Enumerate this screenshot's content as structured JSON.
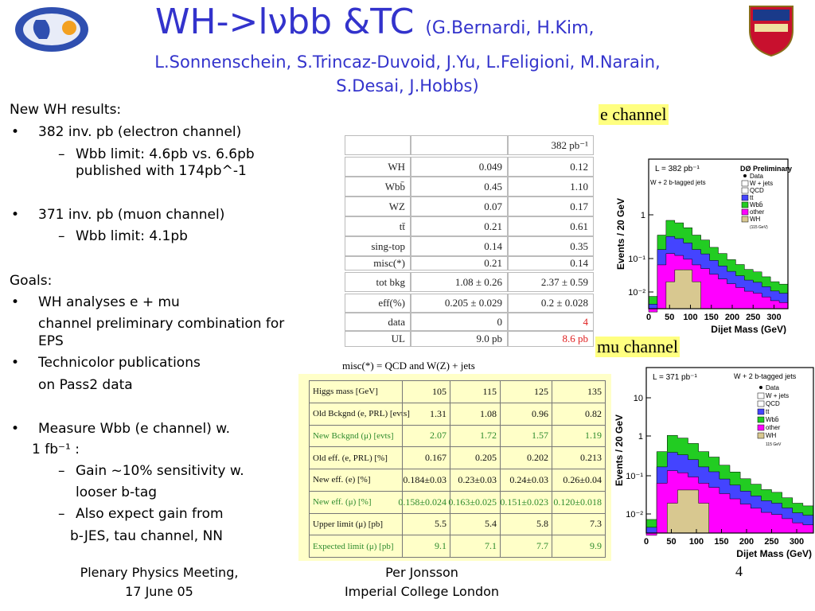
{
  "header": {
    "title": "WH->lνbb &TC",
    "authors": [
      "(G.Bernardi, H.Kim,",
      "L.Sonnenschein, S.Trincaz-Duvoid, J.Yu, L.Feligioni, M.Narain,",
      "S.Desai, J.Hobbs)"
    ]
  },
  "body": {
    "lines": [
      {
        "text": "New WH results:"
      },
      {
        "marker": "•",
        "text": "382 inv. pb (electron channel)"
      },
      {
        "marker": "–",
        "text": "Wbb limit: 4.6pb vs. 6.6pb"
      },
      {
        "text": "published with 174pb^-1"
      },
      {
        "marker": "•",
        "text": "371 inv. pb (muon channel)"
      },
      {
        "marker": "–",
        "text": "Wbb limit: 4.1pb"
      },
      {
        "text": "Goals:"
      },
      {
        "marker": "•",
        "text": "WH analyses e + mu"
      },
      {
        "text": "channel preliminary combination for"
      },
      {
        "text": "EPS"
      },
      {
        "marker": "•",
        "text": "Technicolor publications"
      },
      {
        "text": "on Pass2 data"
      },
      {
        "marker": "•",
        "text": "Measure Wbb (e channel) w."
      },
      {
        "text": "1 fb⁻¹ :"
      },
      {
        "marker": "–",
        "text": "Gain ~10% sensitivity w."
      },
      {
        "text": "looser b-tag"
      },
      {
        "marker": "–",
        "text": "Also expect gain from"
      },
      {
        "text": "b-JES, tau channel, NN"
      }
    ]
  },
  "table1": {
    "header": [
      "",
      "",
      "382 pb⁻¹"
    ],
    "rows": [
      [
        "WH",
        "0.049",
        "0.12"
      ],
      [
        "Wbb̄",
        "0.45",
        "1.10"
      ],
      [
        "WZ",
        "0.07",
        "0.17"
      ],
      [
        "tt̄",
        "0.21",
        "0.61"
      ],
      [
        "sing-top",
        "0.14",
        "0.35"
      ],
      [
        "misc(*)",
        "0.21",
        "0.14"
      ],
      [
        "tot bkg",
        "1.08 ± 0.26",
        "2.37 ± 0.59"
      ],
      [
        "eff(%)",
        "0.205 ± 0.029",
        "0.2 ± 0.028"
      ],
      [
        "data",
        "0",
        "4"
      ],
      [
        "UL",
        "9.0 pb",
        "8.6 pb"
      ]
    ],
    "note": "misc(*) = QCD and W(Z) + jets"
  },
  "table2": {
    "rows": [
      [
        "Higgs mass [GeV]",
        "105",
        "115",
        "125",
        "135"
      ],
      [
        "Old Bckgnd (e, PRL) [evts]",
        "1.31",
        "1.08",
        "0.96",
        "0.82"
      ],
      [
        "New Bckgnd (μ) [evts]",
        "2.07",
        "1.72",
        "1.57",
        "1.19"
      ],
      [
        "Old eff. (e, PRL) [%]",
        "0.167",
        "0.205",
        "0.202",
        "0.213"
      ],
      [
        "New eff. (e) [%]",
        "0.184±0.03",
        "0.23±0.03",
        "0.24±0.03",
        "0.26±0.04"
      ],
      [
        "New eff. (μ) [%]",
        "0.158±0.024",
        "0.163±0.025",
        "0.151±0.023",
        "0.120±0.018"
      ],
      [
        "Upper limit (μ) [pb]",
        "5.5",
        "5.4",
        "5.8",
        "7.3"
      ],
      [
        "Expected limit (μ) [pb]",
        "9.1",
        "7.1",
        "7.7",
        "9.9"
      ]
    ]
  },
  "channels": [
    "e channel",
    "mu channel"
  ],
  "plots": [
    {
      "title": "L = 382 pb⁻¹",
      "tag": "DØ Preliminary",
      "sub": "W + 2 b-tagged jets",
      "legend": [
        "Data",
        "W + jets",
        "QCD",
        "tt",
        "Wbb̄",
        "other",
        "WH",
        "(115 GeV)"
      ],
      "ylabel": "Events / 20 GeV",
      "xlabel": "Dijet Mass (GeV)",
      "xticks": [
        "0",
        "50",
        "100",
        "150",
        "200",
        "250",
        "300"
      ],
      "yticks": [
        "1",
        "10⁻¹",
        "10⁻²"
      ]
    },
    {
      "title": "L = 371 pb⁻¹",
      "sub": "W + 2 b-tagged jets",
      "legend": [
        "Data",
        "W + jets",
        "QCD",
        "tt",
        "Wbb̄",
        "other",
        "WH",
        "115 GeV"
      ],
      "ylabel": "Events / 20 GeV",
      "xlabel": "Dijet Mass (GeV)",
      "xticks": [
        "0",
        "50",
        "100",
        "150",
        "200",
        "250",
        "300"
      ],
      "yticks": [
        "10",
        "1",
        "10⁻¹",
        "10⁻²"
      ]
    }
  ],
  "footer": {
    "left": [
      "Plenary Physics Meeting,",
      "17 June 05"
    ],
    "center": [
      "Per Jonsson",
      "Imperial College London"
    ],
    "page": "4"
  }
}
